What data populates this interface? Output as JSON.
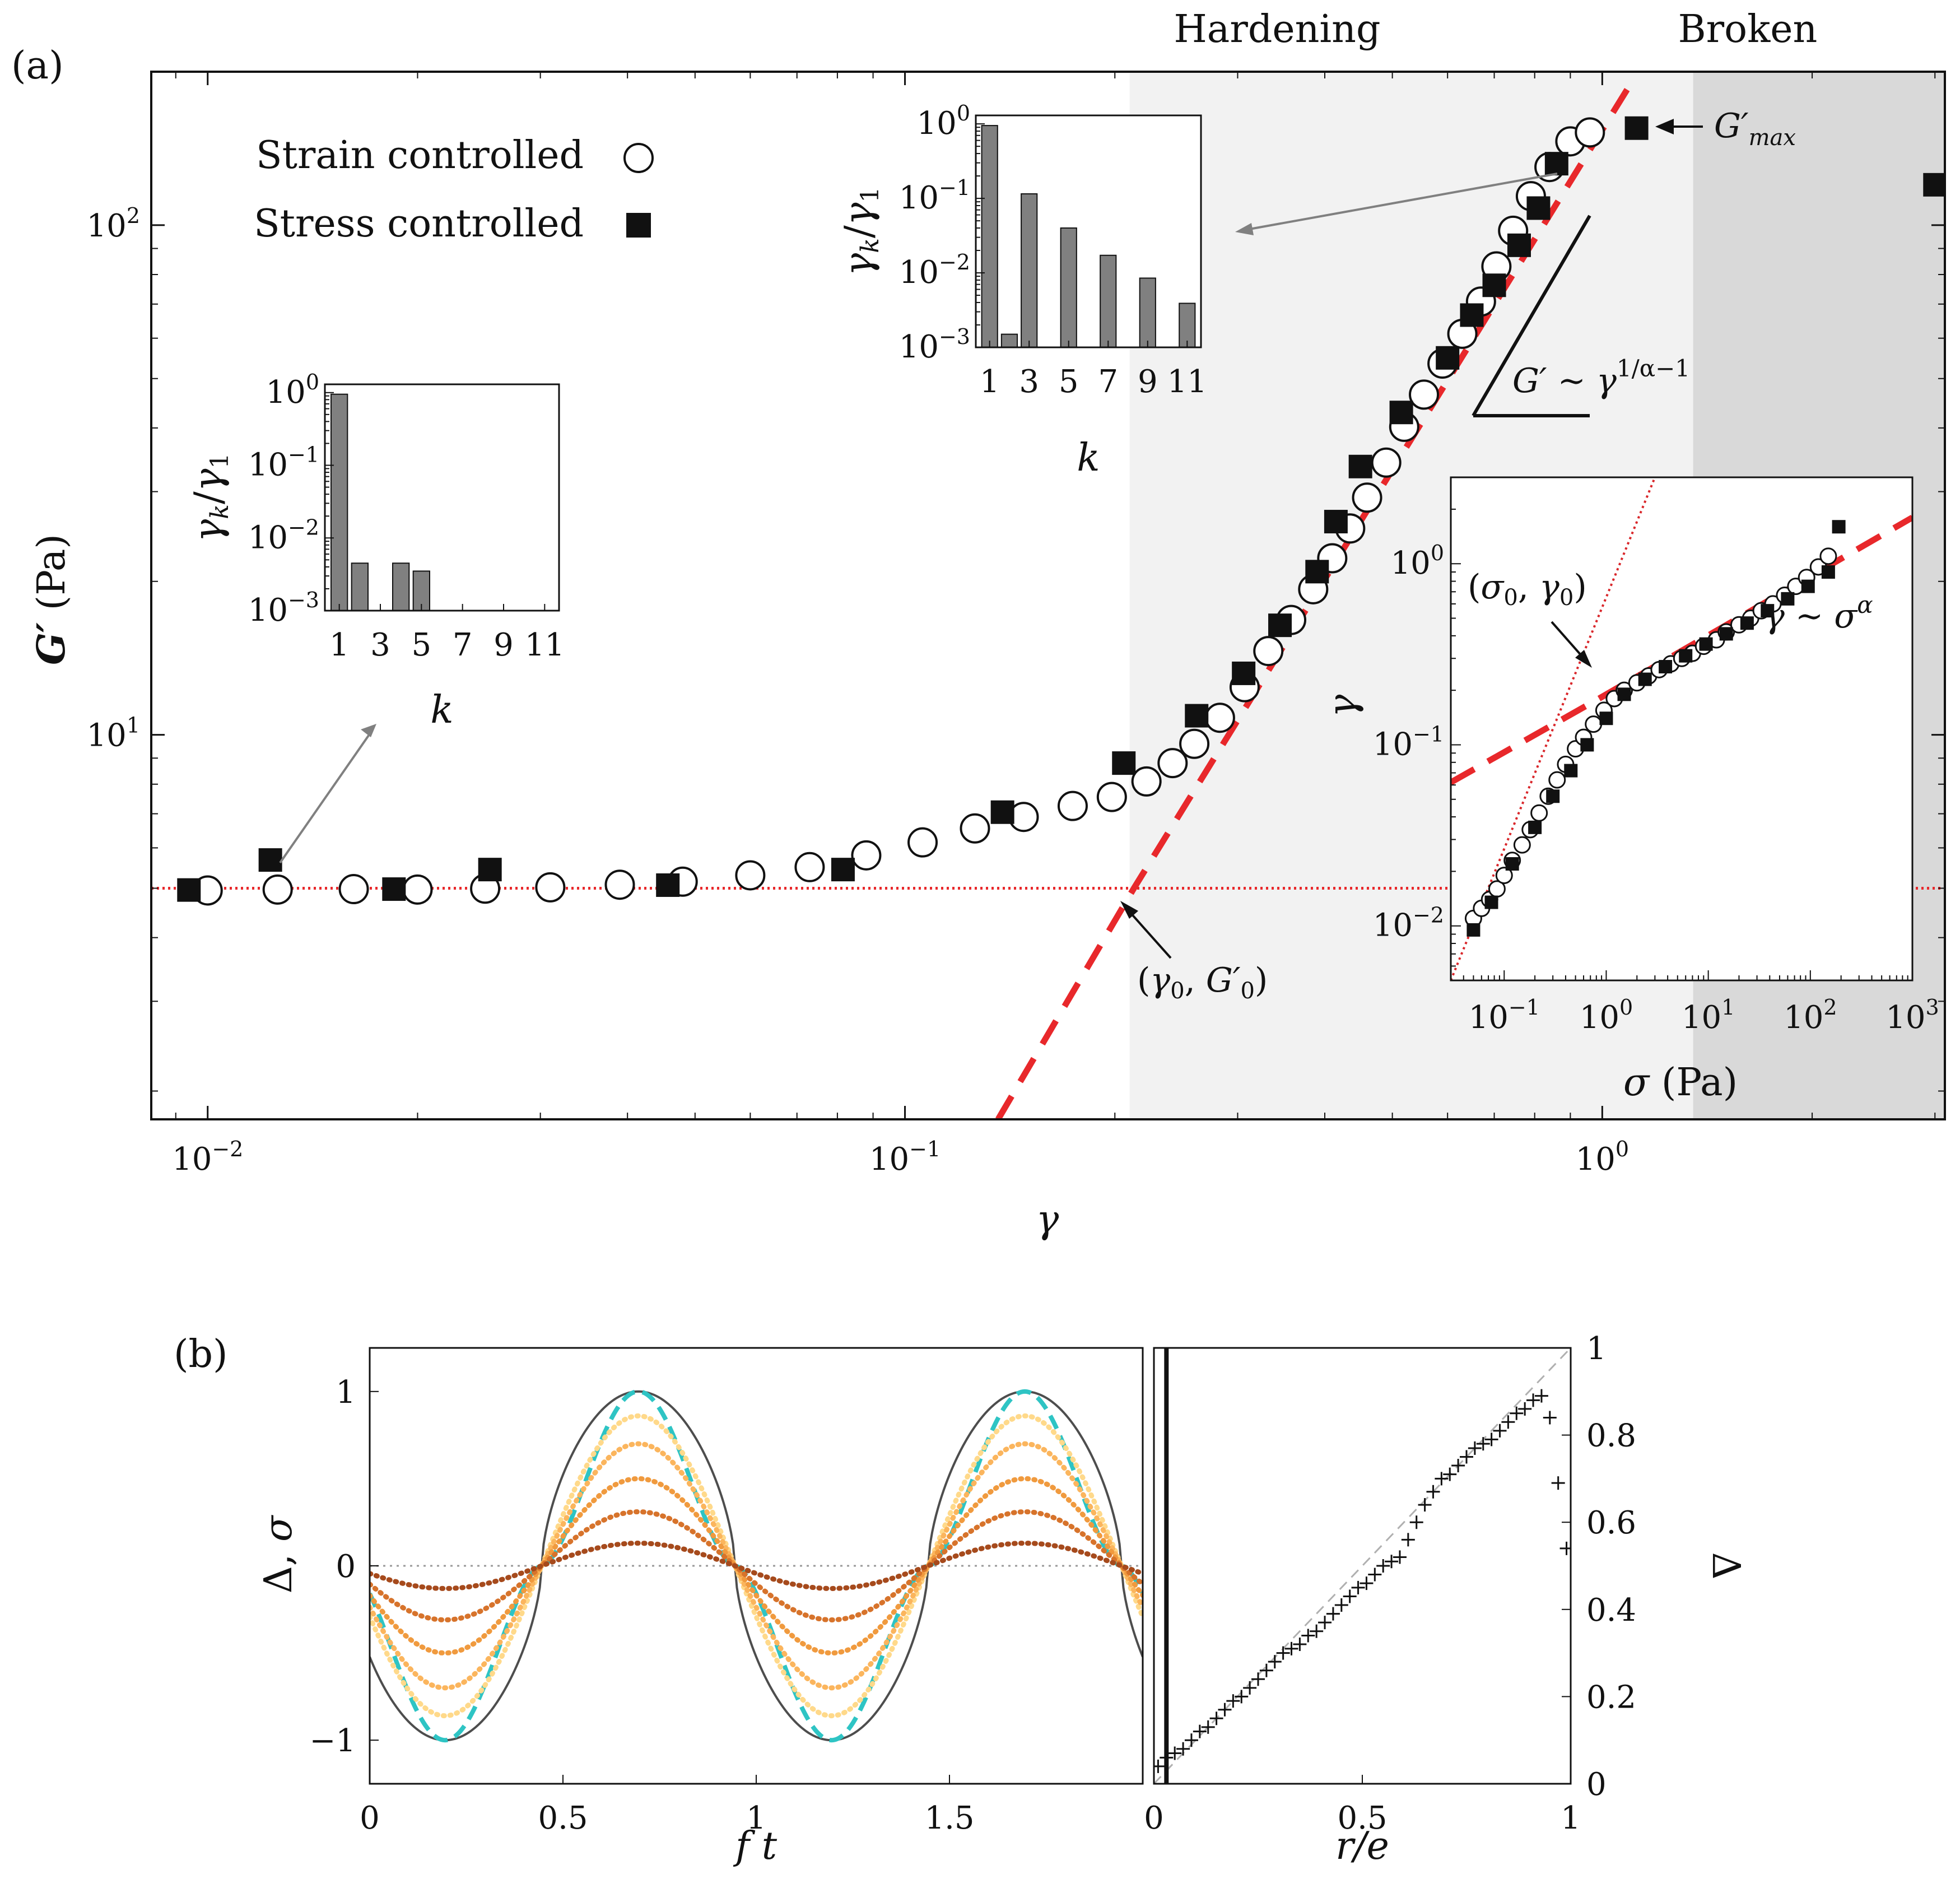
{
  "panel_a_label": "(a)",
  "panel_b_label": "(b)",
  "regions": {
    "hardening": "Hardening",
    "broken": "Broken"
  },
  "annotations": {
    "gmax": "G′max",
    "gamma0_g0": "(γ0, G′0)",
    "sigma0_gamma0": "(σ0, γ0)",
    "powerlaw_g": "G′ ∼ γ^(1/α−1)",
    "powerlaw_gamma": "γ ∼ σ^α"
  },
  "colors": {
    "fit_line": "#e8282b",
    "hardening_bg": "#f2f2f2",
    "broken_bg": "#d9d9d9",
    "bar_fill": "#808080",
    "reference_curve": "#4d4d4d",
    "cyan_dash": "#2ec4c4",
    "series_palette": [
      "#ffd98a",
      "#fbb55d",
      "#f09a3e",
      "#d7732b",
      "#a64a1c"
    ]
  },
  "chart_data": [
    {
      "id": "main",
      "type": "scatter",
      "title": "",
      "xlabel": "γ",
      "ylabel": "G′ (Pa)",
      "xscale": "log",
      "yscale": "log",
      "xlim": [
        0.0083,
        3.1
      ],
      "ylim": [
        1.76,
        200
      ],
      "xticks": [
        0.01,
        0.1,
        1
      ],
      "xtick_labels": [
        "10^-2",
        "10^-1",
        "10^0"
      ],
      "yticks": [
        10,
        100
      ],
      "ytick_labels": [
        "10^1",
        "10^2"
      ],
      "legend_position": "top-left",
      "series": [
        {
          "name": "Strain controlled",
          "marker": "open-circle",
          "x": [
            0.01,
            0.0126,
            0.0162,
            0.02,
            0.025,
            0.031,
            0.039,
            0.048,
            0.06,
            0.073,
            0.088,
            0.106,
            0.126,
            0.148,
            0.174,
            0.198,
            0.222,
            0.242,
            0.26,
            0.283,
            0.307,
            0.332,
            0.358,
            0.385,
            0.41,
            0.435,
            0.46,
            0.49,
            0.52,
            0.555,
            0.59,
            0.63,
            0.67,
            0.705,
            0.745,
            0.79,
            0.84,
            0.9,
            0.96
          ],
          "y": [
            4.95,
            4.97,
            4.98,
            4.97,
            4.99,
            5.02,
            5.08,
            5.15,
            5.3,
            5.5,
            5.8,
            6.15,
            6.55,
            6.9,
            7.25,
            7.55,
            8.1,
            8.8,
            9.6,
            10.8,
            12.4,
            14.6,
            16.8,
            19.3,
            22.2,
            25.4,
            29.2,
            34.2,
            40.2,
            46.5,
            53.5,
            61.2,
            70.8,
            83,
            97.5,
            114,
            130,
            146,
            152
          ]
        },
        {
          "name": "Stress controlled",
          "marker": "filled-square",
          "x": [
            0.0094,
            0.0123,
            0.0185,
            0.0254,
            0.0457,
            0.0815,
            0.138,
            0.206,
            0.262,
            0.306,
            0.345,
            0.39,
            0.415,
            0.45,
            0.515,
            0.6,
            0.65,
            0.7,
            0.76,
            0.81,
            0.86,
            1.12,
            3.0
          ],
          "y": [
            4.96,
            5.68,
            4.98,
            5.44,
            5.07,
            5.44,
            7.05,
            8.8,
            10.9,
            13.2,
            16.4,
            20.9,
            26.2,
            33.6,
            42.9,
            54.9,
            66.6,
            76.2,
            91.3,
            108,
            132,
            155,
            120
          ]
        }
      ],
      "fits": [
        {
          "name": "",
          "kind": "horizontal-dotted",
          "y": 5.0
        },
        {
          "name": "",
          "kind": "power-law-dashed",
          "points": [
            [
              0.136,
              1.76
            ],
            [
              0.213,
              5.0
            ],
            [
              1.1,
              190
            ]
          ]
        }
      ],
      "markers": [
        {
          "label": "(γ0, G′0)",
          "x": 0.213,
          "y": 5.0
        },
        {
          "label": "G′max",
          "x": 1.12,
          "y": 155
        }
      ],
      "regions": [
        {
          "label": "Hardening",
          "x_from": 0.21,
          "x_to": 1.35
        },
        {
          "label": "Broken",
          "x_from": 1.35,
          "x_to": 3.1
        }
      ]
    },
    {
      "id": "inset_left",
      "type": "bar",
      "xlabel": "k",
      "ylabel": "γk/γ1",
      "yscale": "log",
      "ylim": [
        0.001,
        1.3
      ],
      "yticks": [
        0.001,
        0.01,
        0.1,
        1
      ],
      "ytick_labels": [
        "10^-3",
        "10^-2",
        "10^-1",
        "10^0"
      ],
      "categories": [
        "1",
        "2",
        "3",
        "4",
        "5",
        "6",
        "7",
        "8",
        "9",
        "10",
        "11"
      ],
      "xtick_labels": [
        "1",
        "3",
        "5",
        "7",
        "9",
        "11"
      ],
      "values": [
        0.95,
        0.0045,
        0.0,
        0.0045,
        0.0035,
        0.0,
        0.0,
        0.0,
        0.0,
        0.0,
        0.0
      ]
    },
    {
      "id": "inset_top",
      "type": "bar",
      "xlabel": "k",
      "ylabel": "γk/γ1",
      "yscale": "log",
      "ylim": [
        0.001,
        1.3
      ],
      "yticks": [
        0.001,
        0.01,
        0.1,
        1
      ],
      "ytick_labels": [
        "10^-3",
        "10^-2",
        "10^-1",
        "10^0"
      ],
      "categories": [
        "1",
        "2",
        "3",
        "4",
        "5",
        "6",
        "7",
        "8",
        "9",
        "10",
        "11"
      ],
      "xtick_labels": [
        "1",
        "3",
        "5",
        "7",
        "9",
        "11"
      ],
      "values": [
        0.95,
        0.0015,
        0.115,
        0.0,
        0.04,
        0.0,
        0.0172,
        0.0,
        0.0085,
        0.0,
        0.0039
      ]
    },
    {
      "id": "inset_right",
      "type": "scatter",
      "xlabel": "σ (Pa)",
      "ylabel": "γ",
      "xscale": "log",
      "yscale": "log",
      "xlim": [
        0.03,
        1000
      ],
      "ylim": [
        0.005,
        3
      ],
      "xticks": [
        0.1,
        1,
        10,
        100,
        1000
      ],
      "xtick_labels": [
        "10^-1",
        "10^0",
        "10^1",
        "10^2",
        "10^3"
      ],
      "yticks": [
        0.01,
        0.1,
        1
      ],
      "ytick_labels": [
        "10^-2",
        "10^-1",
        "10^0"
      ],
      "series": [
        {
          "name": "Strain controlled",
          "marker": "open-circle",
          "x": [
            0.05,
            0.06,
            0.072,
            0.085,
            0.1,
            0.12,
            0.15,
            0.18,
            0.22,
            0.27,
            0.33,
            0.4,
            0.5,
            0.6,
            0.75,
            0.95,
            1.2,
            1.5,
            2,
            2.6,
            3.3,
            4.3,
            5.5,
            7,
            9,
            12,
            15,
            20,
            26,
            33,
            43,
            56,
            72,
            92,
            120,
            150
          ],
          "y": [
            0.011,
            0.0125,
            0.014,
            0.016,
            0.019,
            0.023,
            0.028,
            0.034,
            0.042,
            0.052,
            0.064,
            0.078,
            0.095,
            0.11,
            0.13,
            0.155,
            0.18,
            0.2,
            0.22,
            0.24,
            0.26,
            0.28,
            0.3,
            0.32,
            0.35,
            0.38,
            0.42,
            0.46,
            0.5,
            0.55,
            0.6,
            0.67,
            0.75,
            0.84,
            0.96,
            1.1
          ]
        },
        {
          "name": "Stress controlled",
          "marker": "filled-square",
          "x": [
            0.05,
            0.075,
            0.12,
            0.2,
            0.3,
            0.45,
            0.65,
            1.0,
            1.5,
            2.4,
            3.8,
            6,
            9.5,
            15,
            24,
            38,
            60,
            95,
            150,
            190
          ],
          "y": [
            0.0095,
            0.0135,
            0.022,
            0.035,
            0.052,
            0.072,
            0.1,
            0.14,
            0.19,
            0.23,
            0.27,
            0.31,
            0.36,
            0.41,
            0.47,
            0.55,
            0.64,
            0.75,
            0.9,
            1.6
          ]
        }
      ],
      "fits": [
        {
          "name": "",
          "kind": "dotted",
          "points": [
            [
              0.03,
              0.005
            ],
            [
              3,
              3
            ]
          ]
        },
        {
          "name": "",
          "kind": "dashed",
          "points": [
            [
              0.03,
              0.062
            ],
            [
              0.85,
              0.18
            ],
            [
              1000,
              1.8
            ]
          ]
        }
      ],
      "markers": [
        {
          "label": "(σ0, γ0)",
          "x": 0.85,
          "y": 0.18
        }
      ]
    },
    {
      "id": "panel_b_left",
      "type": "line",
      "xlabel": "f t",
      "ylabel": "Δ, σ",
      "xlim": [
        0,
        2
      ],
      "ylim": [
        -1.25,
        1.25
      ],
      "xticks": [
        0,
        0.5,
        1,
        1.5
      ],
      "xtick_labels": [
        "0",
        "0.5",
        "1",
        "1.5"
      ],
      "yticks": [
        -1,
        0,
        1
      ],
      "ytick_labels": [
        "−1",
        "0",
        "1"
      ],
      "period": 1.0,
      "zero_crossing": 0.445,
      "series": [
        {
          "name": "",
          "kind": "reference-solid",
          "amplitude": 1.0
        },
        {
          "name": "",
          "kind": "cyan-dashed",
          "amplitude": 1.0
        },
        {
          "name": "",
          "kind": "dotted",
          "amplitude": 0.86
        },
        {
          "name": "",
          "kind": "dotted",
          "amplitude": 0.7
        },
        {
          "name": "",
          "kind": "dotted",
          "amplitude": 0.5
        },
        {
          "name": "",
          "kind": "dotted",
          "amplitude": 0.31
        },
        {
          "name": "",
          "kind": "dotted",
          "amplitude": 0.13
        }
      ]
    },
    {
      "id": "panel_b_right",
      "type": "scatter",
      "xlabel": "r/e",
      "ylabel": "Δ",
      "xlim": [
        0,
        1
      ],
      "ylim": [
        0,
        1
      ],
      "xticks": [
        0,
        0.5,
        1
      ],
      "xtick_labels": [
        "0",
        "0.5",
        "1"
      ],
      "yticks": [
        0,
        0.2,
        0.4,
        0.6,
        0.8,
        1
      ],
      "ytick_labels": [
        "0",
        "0.2",
        "0.4",
        "0.6",
        "0.8",
        "1"
      ],
      "y_axis_side": "right",
      "series": [
        {
          "name": "",
          "marker": "plus",
          "x": [
            0.01,
            0.03,
            0.05,
            0.07,
            0.09,
            0.11,
            0.13,
            0.15,
            0.17,
            0.19,
            0.21,
            0.23,
            0.25,
            0.27,
            0.29,
            0.31,
            0.33,
            0.35,
            0.37,
            0.39,
            0.41,
            0.43,
            0.45,
            0.47,
            0.49,
            0.51,
            0.53,
            0.55,
            0.57,
            0.59,
            0.61,
            0.63,
            0.65,
            0.67,
            0.69,
            0.71,
            0.73,
            0.75,
            0.77,
            0.79,
            0.81,
            0.83,
            0.85,
            0.87,
            0.89,
            0.91,
            0.93,
            0.95,
            0.97,
            0.99
          ],
          "y": [
            0.04,
            0.06,
            0.07,
            0.08,
            0.1,
            0.12,
            0.13,
            0.15,
            0.17,
            0.19,
            0.2,
            0.22,
            0.24,
            0.26,
            0.28,
            0.3,
            0.31,
            0.32,
            0.34,
            0.35,
            0.37,
            0.39,
            0.41,
            0.43,
            0.45,
            0.46,
            0.48,
            0.5,
            0.51,
            0.52,
            0.56,
            0.6,
            0.64,
            0.67,
            0.7,
            0.71,
            0.73,
            0.75,
            0.77,
            0.78,
            0.79,
            0.81,
            0.83,
            0.85,
            0.86,
            0.88,
            0.89,
            0.84,
            0.69,
            0.54
          ]
        }
      ],
      "reference_line": {
        "name": "",
        "kind": "dashed",
        "points": [
          [
            0,
            0
          ],
          [
            1,
            1
          ]
        ]
      },
      "vertical_marker_x": 0.03
    }
  ]
}
